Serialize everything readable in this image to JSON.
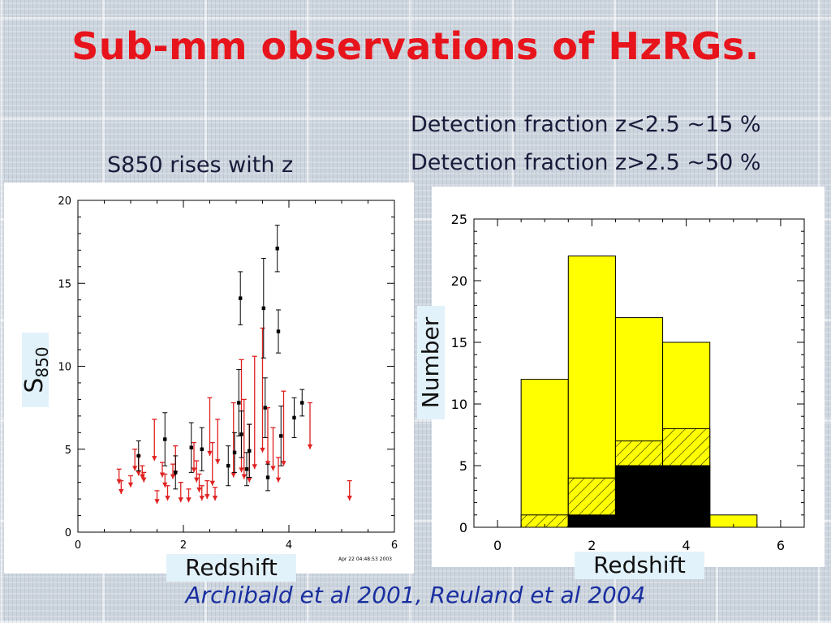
{
  "slide": {
    "title": "Sub-mm observations of HzRGs.",
    "left_note": "S850 rises with z",
    "right_notes": [
      "Detection fraction z<2.5 ~15 %",
      "Detection fraction z>2.5 ~50 %"
    ],
    "citation": "Archibald et al 2001, Reuland et al 2004"
  },
  "colors": {
    "title": "#e8141c",
    "citation": "#1a2fa0",
    "upper_limit": "#e02020",
    "detection": "#000000",
    "histogram_fill": "#ffff00"
  },
  "chart_data": [
    {
      "type": "scatter",
      "xlabel": "Redshift",
      "ylabel_main": "S",
      "ylabel_sub": "850",
      "xlim": [
        0,
        6
      ],
      "ylim": [
        0,
        20
      ],
      "xticks": [
        "0",
        "2",
        "4",
        "6"
      ],
      "yticks": [
        "0",
        "5",
        "10",
        "15",
        "20"
      ],
      "stamp": "Apr 22 04:48:53 2003",
      "detections": [
        {
          "x": 1.15,
          "y": 4.6,
          "err": 0.9
        },
        {
          "x": 1.65,
          "y": 5.6,
          "err": 1.6
        },
        {
          "x": 1.85,
          "y": 3.6,
          "err": 1.0
        },
        {
          "x": 2.15,
          "y": 5.1,
          "err": 1.5
        },
        {
          "x": 2.35,
          "y": 5.0,
          "err": 1.3
        },
        {
          "x": 2.85,
          "y": 4.0,
          "err": 1.2
        },
        {
          "x": 2.97,
          "y": 4.8,
          "err": 1.2
        },
        {
          "x": 3.05,
          "y": 7.8,
          "err": 2.0
        },
        {
          "x": 3.08,
          "y": 14.1,
          "err": 1.6
        },
        {
          "x": 3.1,
          "y": 5.9,
          "err": 1.4
        },
        {
          "x": 3.2,
          "y": 3.8,
          "err": 1.0
        },
        {
          "x": 3.25,
          "y": 4.9,
          "err": 1.6
        },
        {
          "x": 3.52,
          "y": 13.5,
          "err": 3.0
        },
        {
          "x": 3.55,
          "y": 7.5,
          "err": 1.8
        },
        {
          "x": 3.6,
          "y": 3.3,
          "err": 0.8
        },
        {
          "x": 3.78,
          "y": 17.1,
          "err": 1.4
        },
        {
          "x": 3.8,
          "y": 12.1,
          "err": 1.3
        },
        {
          "x": 3.85,
          "y": 5.8,
          "err": 1.8
        },
        {
          "x": 4.1,
          "y": 6.9,
          "err": 1.2
        },
        {
          "x": 4.25,
          "y": 7.8,
          "err": 0.8
        }
      ],
      "upper_limits": [
        {
          "x": 0.78,
          "y": 3.8,
          "len": 0.9
        },
        {
          "x": 0.82,
          "y": 3.1,
          "len": 0.8
        },
        {
          "x": 1.0,
          "y": 3.4,
          "len": 0.7
        },
        {
          "x": 1.08,
          "y": 5.0,
          "len": 1.3
        },
        {
          "x": 1.15,
          "y": 4.6,
          "len": 1.2
        },
        {
          "x": 1.22,
          "y": 4.0,
          "len": 0.8
        },
        {
          "x": 1.25,
          "y": 3.6,
          "len": 0.6
        },
        {
          "x": 1.45,
          "y": 6.8,
          "len": 2.5
        },
        {
          "x": 1.5,
          "y": 2.5,
          "len": 0.8
        },
        {
          "x": 1.6,
          "y": 4.2,
          "len": 0.9
        },
        {
          "x": 1.65,
          "y": 3.5,
          "len": 0.8
        },
        {
          "x": 1.7,
          "y": 2.8,
          "len": 0.9
        },
        {
          "x": 1.8,
          "y": 4.1,
          "len": 0.9
        },
        {
          "x": 1.85,
          "y": 5.2,
          "len": 1.8
        },
        {
          "x": 1.95,
          "y": 3.0,
          "len": 1.2
        },
        {
          "x": 2.1,
          "y": 2.6,
          "len": 0.8
        },
        {
          "x": 2.2,
          "y": 5.4,
          "len": 1.8
        },
        {
          "x": 2.25,
          "y": 4.3,
          "len": 1.3
        },
        {
          "x": 2.3,
          "y": 3.5,
          "len": 1.1
        },
        {
          "x": 2.35,
          "y": 2.8,
          "len": 0.9
        },
        {
          "x": 2.45,
          "y": 3.1,
          "len": 1.1
        },
        {
          "x": 2.5,
          "y": 8.1,
          "len": 3.5
        },
        {
          "x": 2.55,
          "y": 5.4,
          "len": 2.6
        },
        {
          "x": 2.6,
          "y": 2.7,
          "len": 0.8
        },
        {
          "x": 2.65,
          "y": 6.8,
          "len": 2.7
        },
        {
          "x": 2.95,
          "y": 7.8,
          "len": 4.5
        },
        {
          "x": 3.1,
          "y": 10.4,
          "len": 6.8
        },
        {
          "x": 3.15,
          "y": 8.0,
          "len": 4.8
        },
        {
          "x": 3.25,
          "y": 6.5,
          "len": 3.5
        },
        {
          "x": 3.35,
          "y": 10.6,
          "len": 6.8
        },
        {
          "x": 3.5,
          "y": 12.3,
          "len": 7.5
        },
        {
          "x": 3.6,
          "y": 7.5,
          "len": 3.5
        },
        {
          "x": 3.7,
          "y": 6.3,
          "len": 2.6
        },
        {
          "x": 3.8,
          "y": 4.5,
          "len": 1.5
        },
        {
          "x": 3.9,
          "y": 8.5,
          "len": 4.5
        },
        {
          "x": 4.4,
          "y": 7.8,
          "len": 2.8
        },
        {
          "x": 5.15,
          "y": 3.1,
          "len": 1.2
        }
      ]
    },
    {
      "type": "bar",
      "histogram": true,
      "xlabel": "Redshift",
      "ylabel": "Number",
      "xlim": [
        -0.5,
        6.5
      ],
      "ylim": [
        0,
        25
      ],
      "xticks": [
        "0",
        "2",
        "4",
        "6"
      ],
      "yticks": [
        "0",
        "5",
        "10",
        "15",
        "20",
        "25"
      ],
      "bin_edges": [
        0.5,
        1.5,
        2.5,
        3.5,
        4.5,
        5.5
      ],
      "series": [
        {
          "values": [
            12,
            22,
            17,
            15,
            1
          ],
          "fill": "yellow"
        },
        {
          "values": [
            1,
            4,
            7,
            8,
            0
          ],
          "fill": "hatched"
        },
        {
          "values": [
            0,
            1,
            5,
            5,
            0
          ],
          "fill": "black"
        }
      ]
    }
  ]
}
